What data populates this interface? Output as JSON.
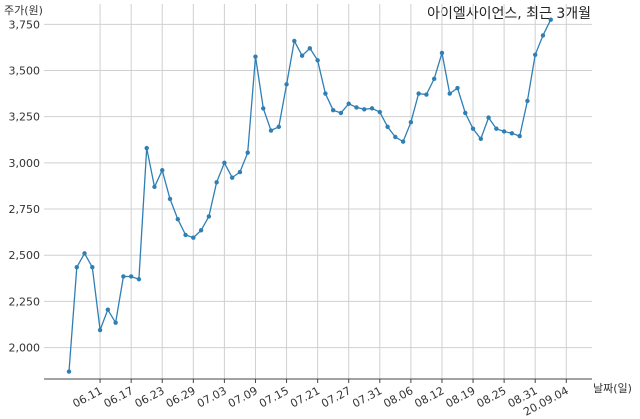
{
  "chart_data": {
    "type": "line",
    "title": "아이엘사이언스, 최근 3개월",
    "ylabel": "주가(원)",
    "xlabel": "날짜(일)",
    "ylim": [
      1830,
      3860
    ],
    "yticks": [
      2000,
      2250,
      2500,
      2750,
      3000,
      3250,
      3500,
      3750
    ],
    "ytick_labels": [
      "2,000",
      "2,250",
      "2,500",
      "2,750",
      "3,000",
      "3,250",
      "3,500",
      "3,750"
    ],
    "xticks": [
      {
        "index": 4,
        "label": "06.11"
      },
      {
        "index": 8,
        "label": "06.17"
      },
      {
        "index": 12,
        "label": "06.23"
      },
      {
        "index": 16,
        "label": "06.29"
      },
      {
        "index": 20,
        "label": "07.03"
      },
      {
        "index": 24,
        "label": "07.09"
      },
      {
        "index": 28,
        "label": "07.15"
      },
      {
        "index": 32,
        "label": "07.21"
      },
      {
        "index": 36,
        "label": "07.27"
      },
      {
        "index": 40,
        "label": "07.31"
      },
      {
        "index": 44,
        "label": "08.06"
      },
      {
        "index": 48,
        "label": "08.12"
      },
      {
        "index": 52,
        "label": "08.19"
      },
      {
        "index": 56,
        "label": "08.25"
      },
      {
        "index": 60,
        "label": "08.31"
      },
      {
        "index": 64,
        "label": "20.09.04"
      }
    ],
    "grid": true,
    "series": [
      {
        "color": "#2f7fb5",
        "values": [
          1870,
          2435,
          2510,
          2435,
          2095,
          2205,
          2135,
          2385,
          2385,
          2370,
          3080,
          2870,
          2960,
          2805,
          2695,
          2610,
          2595,
          2635,
          2710,
          2895,
          3000,
          2920,
          2950,
          3055,
          3575,
          3295,
          3175,
          3195,
          3425,
          3660,
          3580,
          3620,
          3555,
          3375,
          3285,
          3270,
          3320,
          3300,
          3290,
          3295,
          3275,
          3195,
          3140,
          3115,
          3220,
          3375,
          3370,
          3455,
          3595,
          3375,
          3405,
          3270,
          3185,
          3130,
          3245,
          3185,
          3170,
          3160,
          3145,
          3335,
          3585,
          3690,
          3775
        ]
      }
    ]
  }
}
